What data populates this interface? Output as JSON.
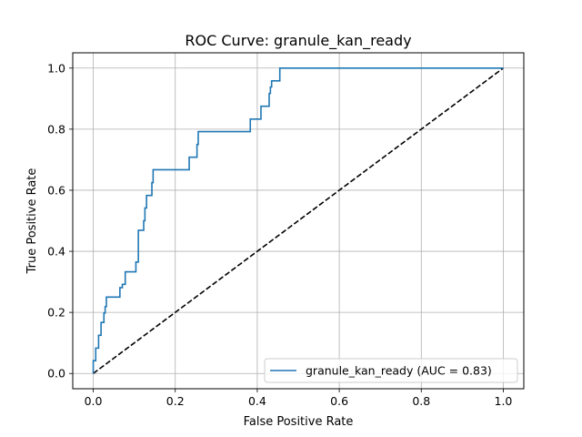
{
  "chart_data": {
    "type": "line",
    "title": "ROC Curve: granule_kan_ready",
    "xlabel": "False Positive Rate",
    "ylabel": "True Positive Rate",
    "xlim": [
      -0.05,
      1.05
    ],
    "ylim": [
      -0.05,
      1.05
    ],
    "xticks": [
      0.0,
      0.2,
      0.4,
      0.6,
      0.8,
      1.0
    ],
    "yticks": [
      0.0,
      0.2,
      0.4,
      0.6,
      0.8,
      1.0
    ],
    "xtick_labels": [
      "0.0",
      "0.2",
      "0.4",
      "0.6",
      "0.8",
      "1.0"
    ],
    "ytick_labels": [
      "0.0",
      "0.2",
      "0.4",
      "0.6",
      "0.8",
      "1.0"
    ],
    "grid": true,
    "legend_position": "lower right",
    "series": [
      {
        "name": "granule_kan_ready (AUC = 0.83)",
        "color": "#1f77b4",
        "style": "solid",
        "x": [
          0.0,
          0.0,
          0.006,
          0.006,
          0.013,
          0.013,
          0.019,
          0.019,
          0.026,
          0.026,
          0.029,
          0.029,
          0.032,
          0.032,
          0.065,
          0.065,
          0.071,
          0.071,
          0.078,
          0.078,
          0.104,
          0.104,
          0.11,
          0.11,
          0.123,
          0.123,
          0.126,
          0.126,
          0.13,
          0.13,
          0.143,
          0.143,
          0.146,
          0.146,
          0.182,
          0.182,
          0.234,
          0.234,
          0.253,
          0.253,
          0.256,
          0.256,
          0.383,
          0.383,
          0.409,
          0.409,
          0.429,
          0.429,
          0.432,
          0.432,
          0.435,
          0.435,
          0.455,
          0.455,
          1.0
        ],
        "y": [
          0.0,
          0.042,
          0.042,
          0.083,
          0.083,
          0.125,
          0.125,
          0.167,
          0.167,
          0.198,
          0.198,
          0.219,
          0.219,
          0.25,
          0.25,
          0.281,
          0.281,
          0.292,
          0.292,
          0.333,
          0.333,
          0.365,
          0.365,
          0.469,
          0.469,
          0.5,
          0.5,
          0.542,
          0.542,
          0.583,
          0.583,
          0.625,
          0.625,
          0.667,
          0.667,
          0.667,
          0.667,
          0.708,
          0.708,
          0.75,
          0.75,
          0.792,
          0.792,
          0.833,
          0.833,
          0.875,
          0.875,
          0.917,
          0.917,
          0.938,
          0.938,
          0.958,
          0.958,
          1.0,
          1.0
        ]
      },
      {
        "name": "",
        "color": "#000000",
        "style": "dashed",
        "x": [
          0,
          1
        ],
        "y": [
          0,
          1
        ]
      }
    ]
  }
}
